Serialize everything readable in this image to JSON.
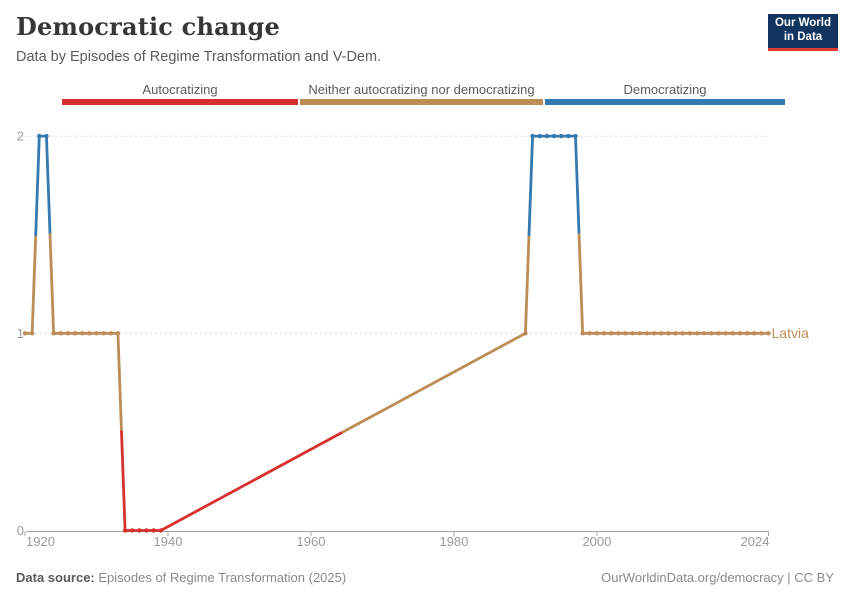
{
  "header": {
    "title": "Democratic change",
    "subtitle": "Data by Episodes of Regime Transformation and V-Dem."
  },
  "logo": {
    "line1": "Our World",
    "line2": "in Data",
    "bg_color": "#12355f",
    "accent_color": "#e23c31"
  },
  "legend": {
    "items": [
      {
        "label": "Autocratizing",
        "color": "#d7312e"
      },
      {
        "label": "Neither autocratizing nor democratizing",
        "color": "#bd8d57"
      },
      {
        "label": "Democratizing",
        "color": "#3579b1"
      }
    ]
  },
  "footer": {
    "source_label": "Data source:",
    "source_value": " Episodes of Regime Transformation (2025)",
    "credit": "OurWorldinData.org/democracy | CC BY"
  },
  "chart_data": {
    "type": "line",
    "title": "Democratic change",
    "subtitle": "Data by Episodes of Regime Transformation and V-Dem.",
    "entity": "Latvia",
    "xlabel": "",
    "ylabel": "",
    "x_range": [
      1920,
      2024
    ],
    "ylim": [
      0,
      2
    ],
    "x_ticks": [
      1920,
      1940,
      1960,
      1980,
      2000,
      2024
    ],
    "y_ticks": [
      0,
      1,
      2
    ],
    "grid": "dashed horizontal at y=1 and y=2",
    "legend_position": "top horizontal bar",
    "value_categories": {
      "0": "Autocratizing",
      "1": "Neither autocratizing nor democratizing",
      "2": "Democratizing"
    },
    "category_colors": {
      "Autocratizing": "#d7312e",
      "Neither autocratizing nor democratizing": "#bd8d57",
      "Democratizing": "#3579b1"
    },
    "data_gaps": [
      [
        1939,
        1990
      ]
    ],
    "points": [
      [
        1920,
        1
      ],
      [
        1921,
        1
      ],
      [
        1922,
        2
      ],
      [
        1923,
        2
      ],
      [
        1924,
        1
      ],
      [
        1925,
        1
      ],
      [
        1926,
        1
      ],
      [
        1927,
        1
      ],
      [
        1928,
        1
      ],
      [
        1929,
        1
      ],
      [
        1930,
        1
      ],
      [
        1931,
        1
      ],
      [
        1932,
        1
      ],
      [
        1933,
        1
      ],
      [
        1934,
        0
      ],
      [
        1935,
        0
      ],
      [
        1936,
        0
      ],
      [
        1937,
        0
      ],
      [
        1938,
        0
      ],
      [
        1939,
        0
      ],
      [
        1990,
        1
      ],
      [
        1991,
        2
      ],
      [
        1992,
        2
      ],
      [
        1993,
        2
      ],
      [
        1994,
        2
      ],
      [
        1995,
        2
      ],
      [
        1996,
        2
      ],
      [
        1997,
        2
      ],
      [
        1998,
        1
      ],
      [
        1999,
        1
      ],
      [
        2000,
        1
      ],
      [
        2001,
        1
      ],
      [
        2002,
        1
      ],
      [
        2003,
        1
      ],
      [
        2004,
        1
      ],
      [
        2005,
        1
      ],
      [
        2006,
        1
      ],
      [
        2007,
        1
      ],
      [
        2008,
        1
      ],
      [
        2009,
        1
      ],
      [
        2010,
        1
      ],
      [
        2011,
        1
      ],
      [
        2012,
        1
      ],
      [
        2013,
        1
      ],
      [
        2014,
        1
      ],
      [
        2015,
        1
      ],
      [
        2016,
        1
      ],
      [
        2017,
        1
      ],
      [
        2018,
        1
      ],
      [
        2019,
        1
      ],
      [
        2020,
        1
      ],
      [
        2021,
        1
      ],
      [
        2022,
        1
      ],
      [
        2023,
        1
      ],
      [
        2024,
        1
      ]
    ]
  }
}
